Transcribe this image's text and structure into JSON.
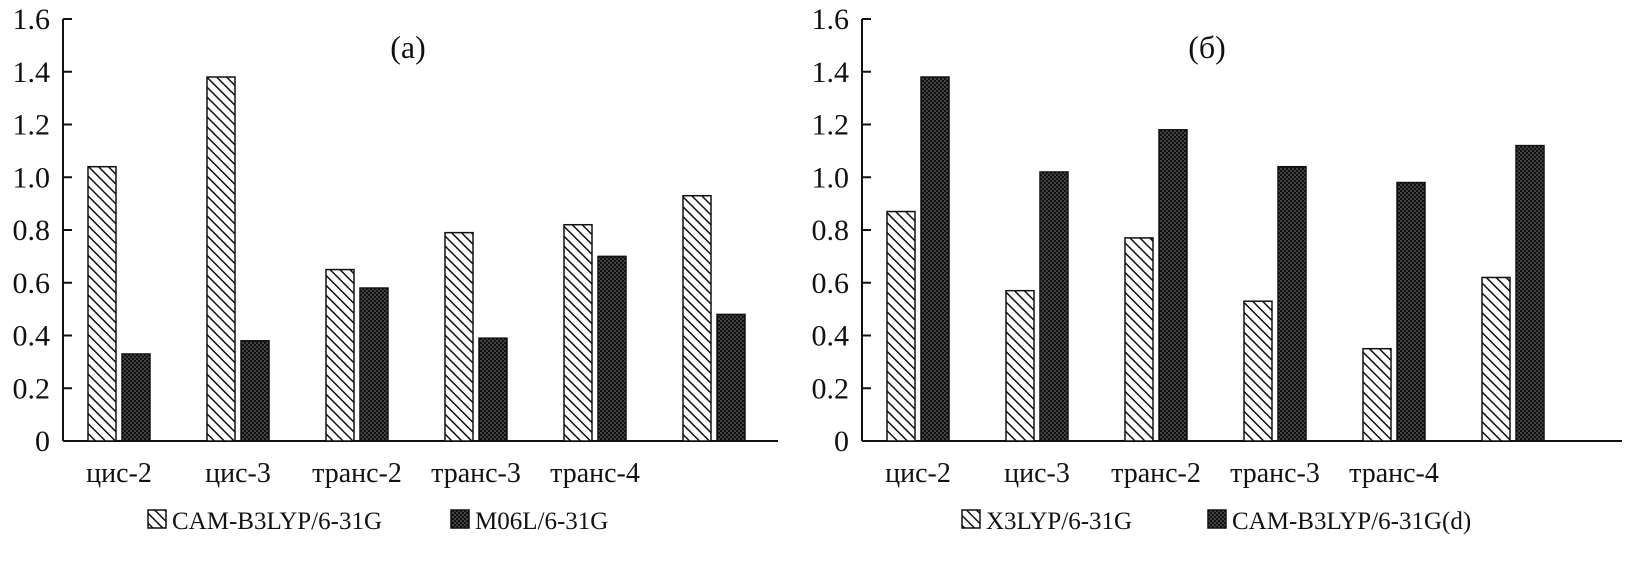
{
  "chart_data": [
    {
      "type": "bar",
      "title": "(а)",
      "categories": [
        "цис-2",
        "цис-3",
        "транс-2",
        "транс-3",
        "транс-4",
        ""
      ],
      "series": [
        {
          "name": "CAM-B3LYP/6-31G",
          "pattern": "hatch",
          "values": [
            1.04,
            1.38,
            0.65,
            0.79,
            0.82,
            0.93
          ]
        },
        {
          "name": "M06L/6-31G",
          "pattern": "dots",
          "values": [
            0.33,
            0.38,
            0.58,
            0.39,
            0.7,
            0.48
          ]
        }
      ],
      "ylim": [
        0,
        1.6
      ],
      "yticks": [
        "0",
        "0.2",
        "0.4",
        "0.6",
        "0.8",
        "1.0",
        "1.2",
        "1.4",
        "1.6"
      ],
      "xlabel": "",
      "ylabel": "",
      "legend_position": "bottom"
    },
    {
      "type": "bar",
      "title": "(б)",
      "categories": [
        "цис-2",
        "цис-3",
        "транс-2",
        "транс-3",
        "транс-4",
        ""
      ],
      "series": [
        {
          "name": "X3LYP/6-31G",
          "pattern": "hatch",
          "values": [
            0.87,
            0.57,
            0.77,
            0.53,
            0.35,
            0.62
          ]
        },
        {
          "name": "CAM-B3LYP/6-31G(d)",
          "pattern": "dots",
          "values": [
            1.38,
            1.02,
            1.18,
            1.04,
            0.98,
            1.12
          ]
        }
      ],
      "ylim": [
        0,
        1.6
      ],
      "yticks": [
        "0",
        "0.2",
        "0.4",
        "0.6",
        "0.8",
        "1.0",
        "1.2",
        "1.4",
        "1.6"
      ],
      "xlabel": "",
      "ylabel": "",
      "legend_position": "bottom"
    }
  ],
  "colors": {
    "ink": "#111111",
    "background": "#ffffff"
  }
}
